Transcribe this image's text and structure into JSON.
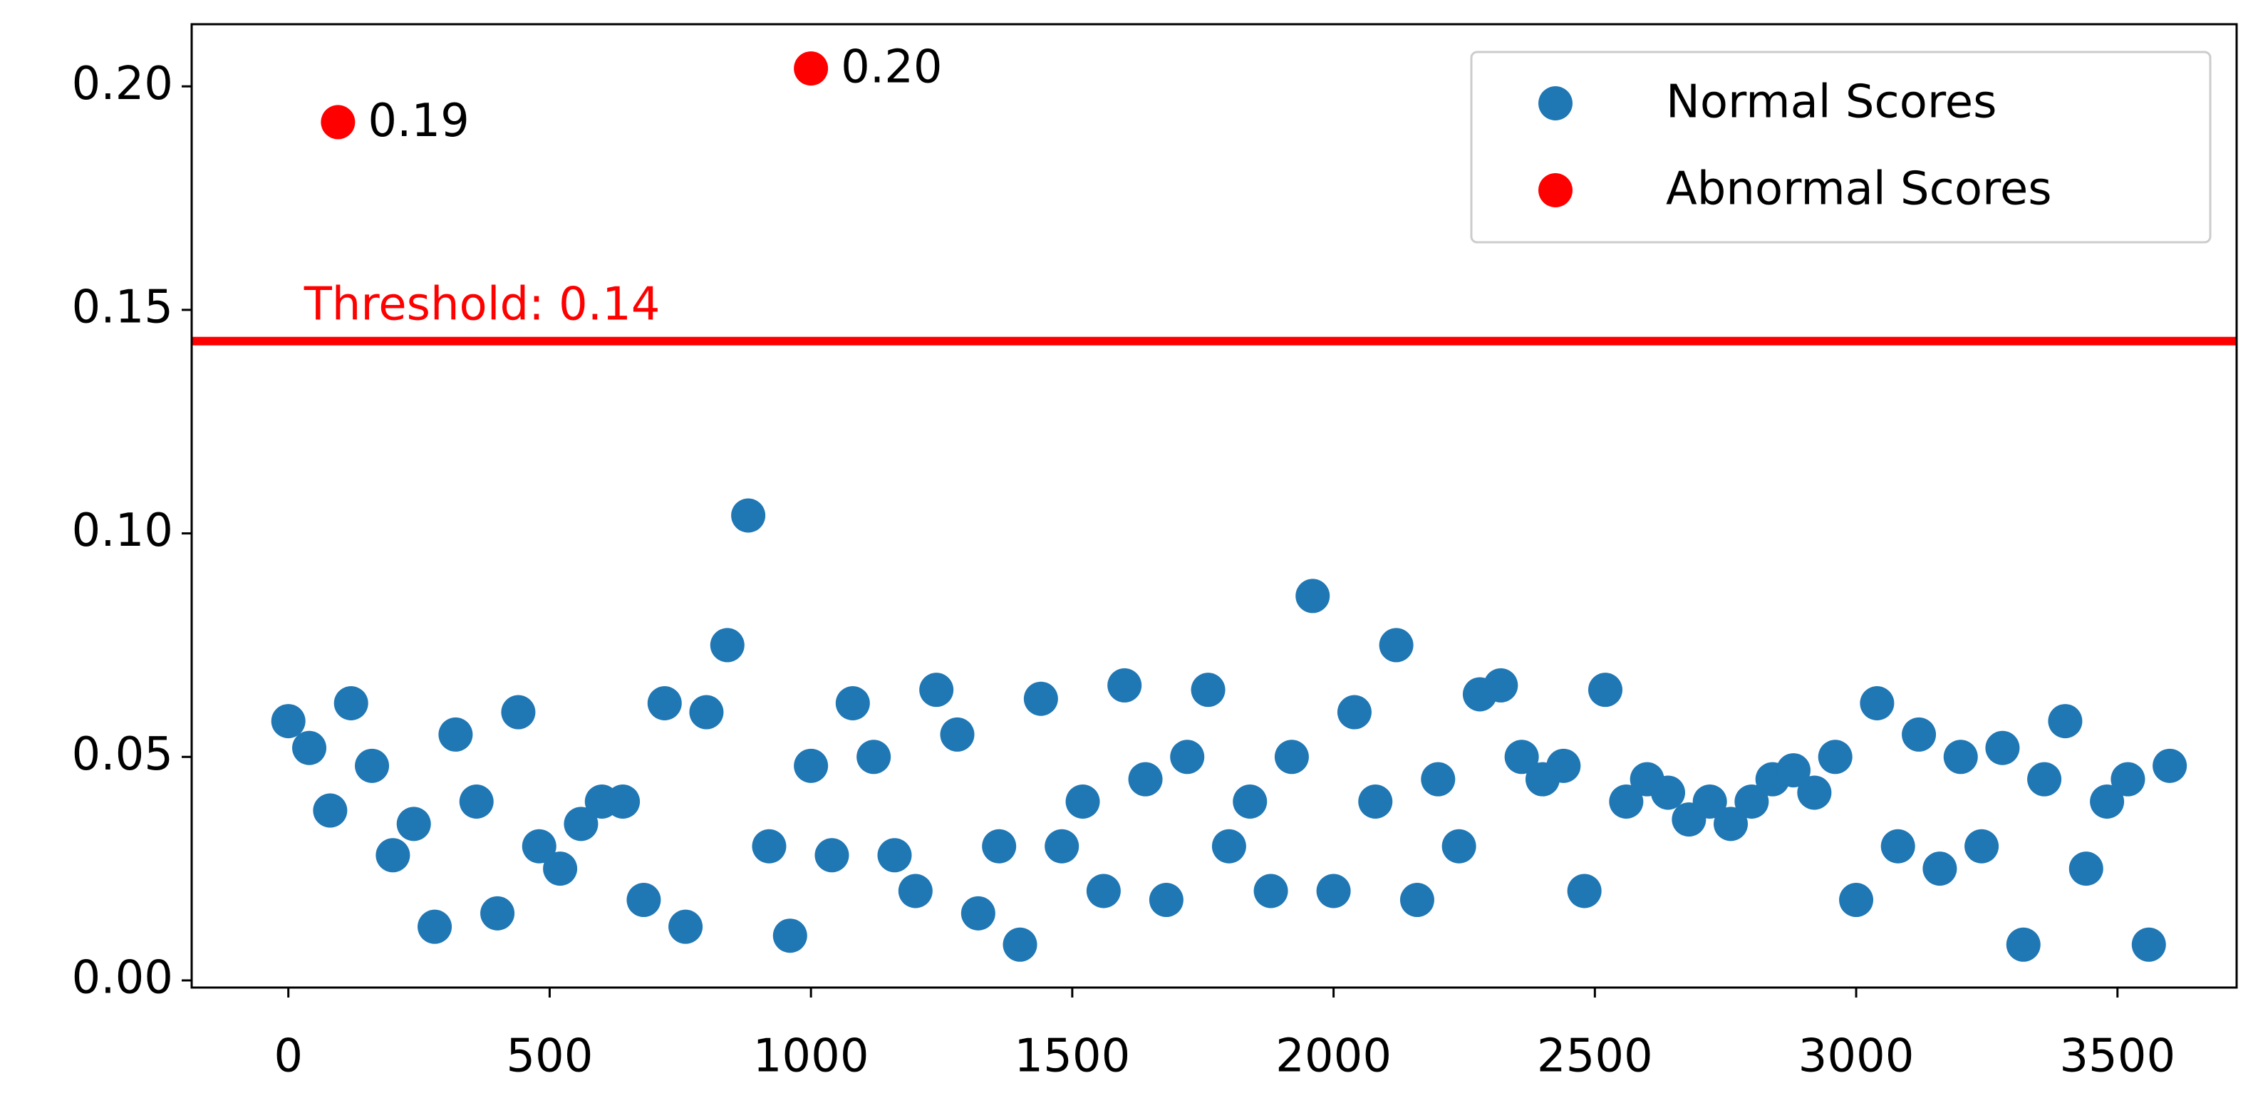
{
  "chart_data": {
    "type": "scatter",
    "xlim": [
      -185,
      3728
    ],
    "ylim": [
      -0.0016,
      0.2139
    ],
    "xticks": [
      0,
      500,
      1000,
      1500,
      2000,
      2500,
      3000,
      3500
    ],
    "yticks": [
      {
        "value": 0,
        "label": "0.00"
      },
      {
        "value": 0.05,
        "label": "0.05"
      },
      {
        "value": 0.1,
        "label": "0.10"
      },
      {
        "value": 0.15,
        "label": "0.15"
      },
      {
        "value": 0.2,
        "label": "0.20"
      }
    ],
    "threshold": {
      "value": 0.143,
      "label": "Threshold: 0.14",
      "color": "#ff0000"
    },
    "legend": "upper right",
    "series": [
      {
        "name": "Normal Scores",
        "color": "#1f77b4",
        "x": [
          0,
          40,
          80,
          120,
          160,
          200,
          240,
          280,
          320,
          360,
          400,
          440,
          480,
          520,
          560,
          600,
          640,
          680,
          720,
          760,
          800,
          840,
          880,
          920,
          960,
          1000,
          1040,
          1080,
          1120,
          1160,
          1200,
          1240,
          1280,
          1320,
          1360,
          1400,
          1440,
          1480,
          1520,
          1560,
          1600,
          1640,
          1680,
          1720,
          1760,
          1800,
          1840,
          1880,
          1920,
          1960,
          2000,
          2040,
          2080,
          2120,
          2160,
          2200,
          2240,
          2280,
          2320,
          2360,
          2400,
          2440,
          2480,
          2520,
          2560,
          2600,
          2640,
          2680,
          2720,
          2760,
          2800,
          2840,
          2880,
          2920,
          2960,
          3000,
          3040,
          3080,
          3120,
          3160,
          3200,
          3240,
          3280,
          3320,
          3360,
          3400,
          3440,
          3480,
          3520,
          3560,
          3600
        ],
        "values": [
          0.058,
          0.052,
          0.038,
          0.062,
          0.048,
          0.028,
          0.035,
          0.012,
          0.055,
          0.04,
          0.015,
          0.06,
          0.03,
          0.025,
          0.035,
          0.04,
          0.04,
          0.018,
          0.062,
          0.012,
          0.06,
          0.075,
          0.104,
          0.03,
          0.01,
          0.048,
          0.028,
          0.062,
          0.05,
          0.028,
          0.02,
          0.065,
          0.055,
          0.015,
          0.03,
          0.008,
          0.063,
          0.03,
          0.04,
          0.02,
          0.066,
          0.045,
          0.018,
          0.05,
          0.065,
          0.03,
          0.04,
          0.02,
          0.05,
          0.086,
          0.02,
          0.06,
          0.04,
          0.075,
          0.018,
          0.045,
          0.03,
          0.064,
          0.066,
          0.05,
          0.045,
          0.048,
          0.02,
          0.065,
          0.04,
          0.045,
          0.042,
          0.036,
          0.04,
          0.035,
          0.04,
          0.045,
          0.047,
          0.042,
          0.05,
          0.018,
          0.062,
          0.03,
          0.055,
          0.025,
          0.05,
          0.03,
          0.052,
          0.008,
          0.045,
          0.058,
          0.025,
          0.04,
          0.045,
          0.008,
          0.048
        ]
      },
      {
        "name": "Abnormal Scores",
        "color": "#ff0000",
        "x": [
          95,
          1000
        ],
        "values": [
          0.192,
          0.204
        ],
        "value_labels": [
          "0.19",
          "0.20"
        ]
      }
    ]
  }
}
